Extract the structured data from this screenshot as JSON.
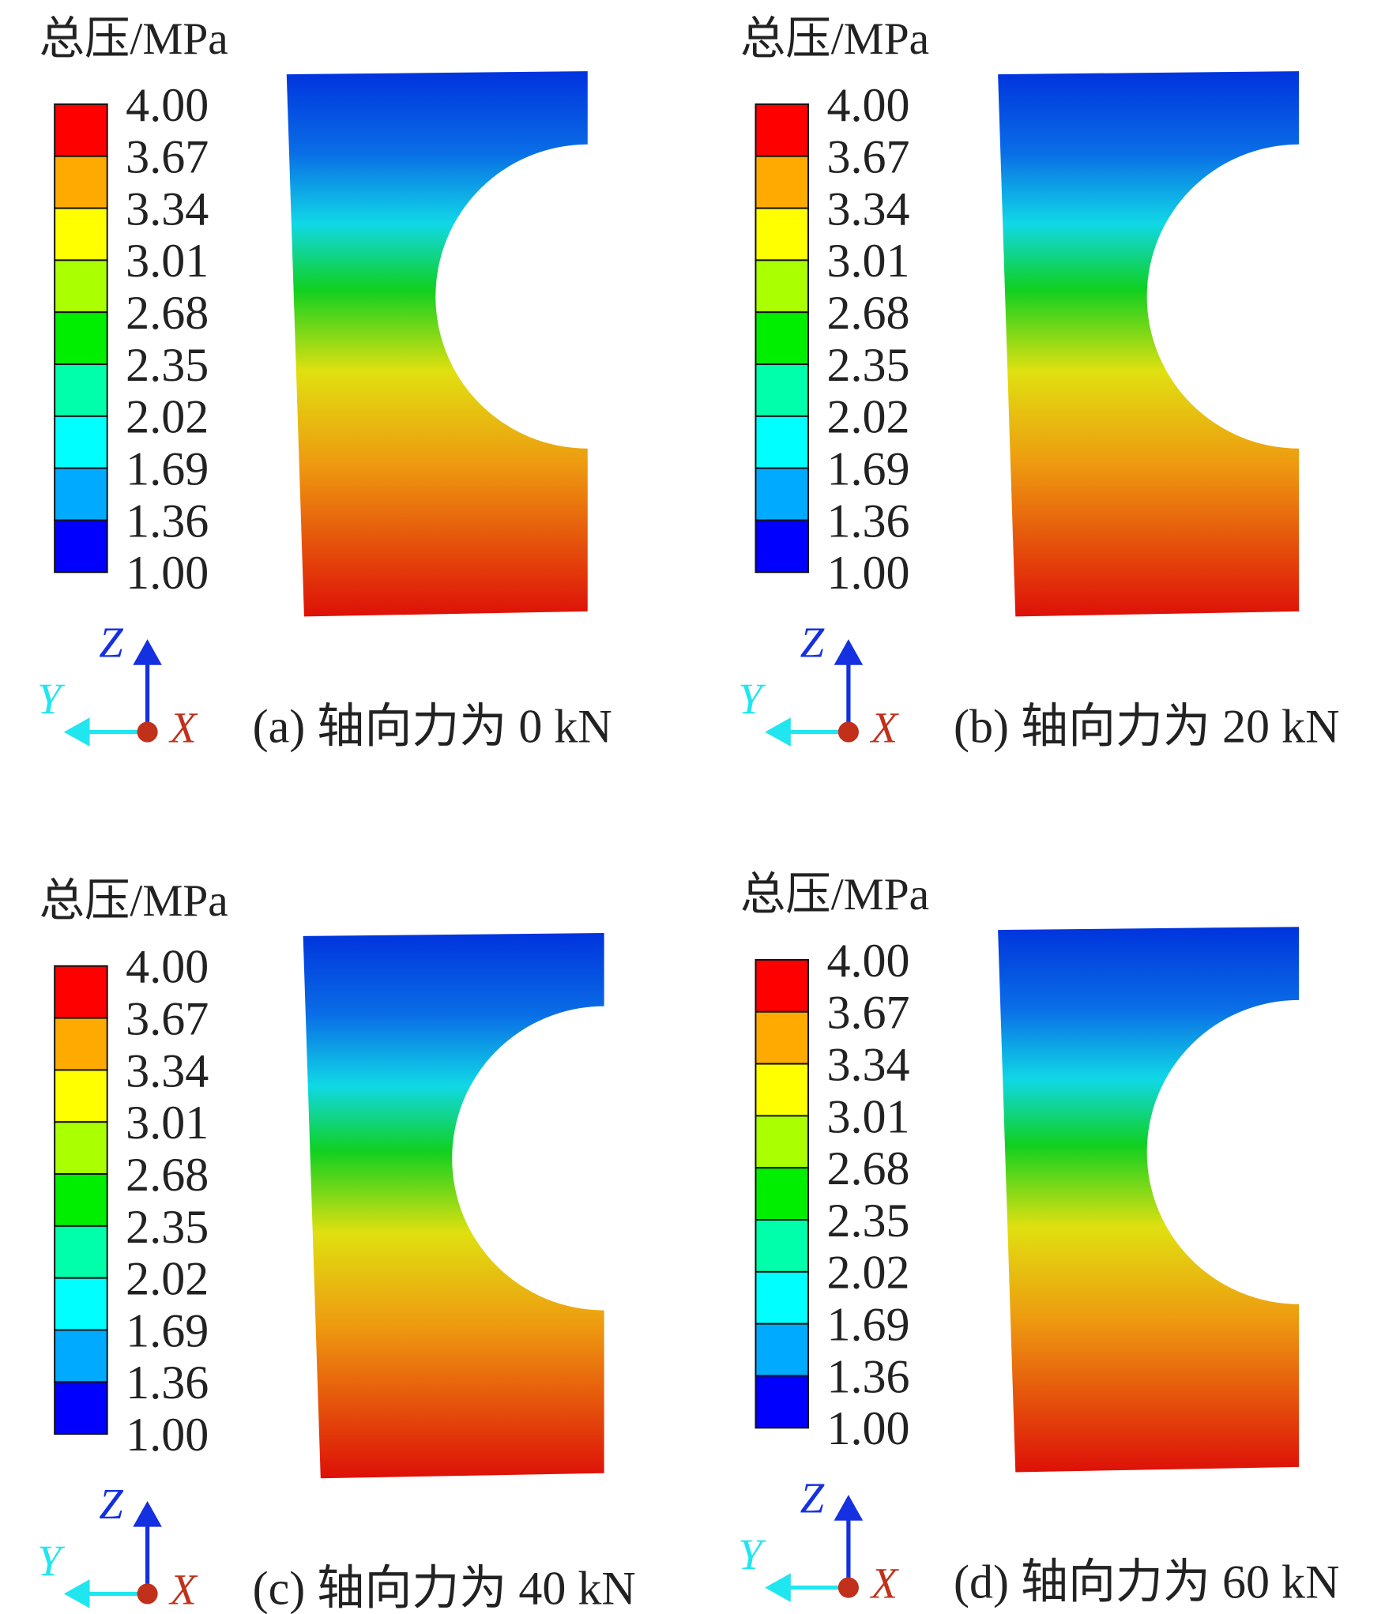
{
  "panels": [
    {
      "legend_title": "总压/MPa",
      "legend_labels": [
        "4.00",
        "3.67",
        "3.34",
        "3.01",
        "2.68",
        "2.35",
        "2.02",
        "1.69",
        "1.36",
        "1.00"
      ],
      "axes": {
        "z": "Z",
        "y": "Y",
        "x": "X"
      },
      "caption": "(a) 轴向力为 0 kN"
    },
    {
      "legend_title": "总压/MPa",
      "legend_labels": [
        "4.00",
        "3.67",
        "3.34",
        "3.01",
        "2.68",
        "2.35",
        "2.02",
        "1.69",
        "1.36",
        "1.00"
      ],
      "axes": {
        "z": "Z",
        "y": "Y",
        "x": "X"
      },
      "caption": "(b) 轴向力为 20 kN"
    },
    {
      "legend_title": "总压/MPa",
      "legend_labels": [
        "4.00",
        "3.67",
        "3.34",
        "3.01",
        "2.68",
        "2.35",
        "2.02",
        "1.69",
        "1.36",
        "1.00"
      ],
      "axes": {
        "z": "Z",
        "y": "Y",
        "x": "X"
      },
      "caption": "(c) 轴向力为 40 kN"
    },
    {
      "legend_title": "总压/MPa",
      "legend_labels": [
        "4.00",
        "3.67",
        "3.34",
        "3.01",
        "2.68",
        "2.35",
        "2.02",
        "1.69",
        "1.36",
        "1.00"
      ],
      "axes": {
        "z": "Z",
        "y": "Y",
        "x": "X"
      },
      "caption": "(d) 轴向力为 60 kN"
    }
  ]
}
